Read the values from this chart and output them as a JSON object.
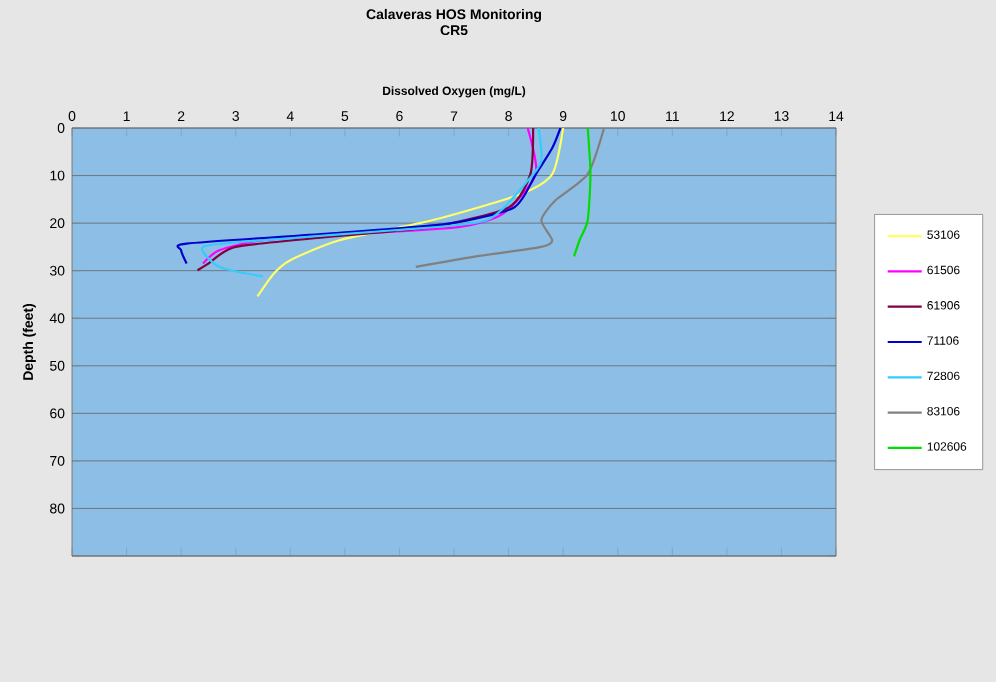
{
  "chart_data": {
    "type": "line",
    "title": "Calaveras HOS Monitoring",
    "subtitle": "CR5",
    "xlabel": "Dissolved Oxygen (mg/L)",
    "ylabel": "Depth (feet)",
    "xlim": [
      0,
      14
    ],
    "xticks": [
      0,
      1,
      2,
      3,
      4,
      5,
      6,
      7,
      8,
      9,
      10,
      11,
      12,
      13,
      14
    ],
    "ylim": [
      90,
      0
    ],
    "yticks": [
      0,
      10,
      20,
      30,
      40,
      50,
      60,
      70,
      80,
      {
        "value": 90,
        "label": null
      }
    ],
    "grid": "y",
    "legend": "right",
    "marker": "none",
    "line_style": "solid",
    "series": [
      {
        "name": "53106",
        "color": "#ffff66",
        "x": [
          9.0,
          8.8,
          8.2,
          6.6,
          4.9,
          4.0,
          3.7,
          3.4
        ],
        "values": [
          0,
          9.7,
          14,
          19.4,
          23.6,
          27.8,
          30.6,
          35.4
        ]
      },
      {
        "name": "61506",
        "color": "#ff00ff",
        "x": [
          8.35,
          8.5,
          7.9,
          7.1,
          5.3,
          3.5,
          2.7,
          2.4
        ],
        "values": [
          0,
          9.7,
          18,
          20.8,
          22.2,
          23.6,
          25.7,
          28.5
        ]
      },
      {
        "name": "61906",
        "color": "#800040",
        "x": [
          8.45,
          8.4,
          8.0,
          6.6,
          4.7,
          3.0,
          2.5,
          2.3
        ],
        "values": [
          0,
          9.7,
          16.7,
          20.8,
          22.9,
          25,
          28.5,
          29.9
        ]
      },
      {
        "name": "71106",
        "color": "#0000cc",
        "x": [
          8.95,
          8.8,
          8.5,
          8.1,
          6.9,
          4.7,
          2.1,
          2.0,
          2.1
        ],
        "values": [
          0,
          4.2,
          9.7,
          16.7,
          20.1,
          22.2,
          24.3,
          25.7,
          28.5
        ]
      },
      {
        "name": "72806",
        "color": "#33ccff",
        "x": [
          8.55,
          8.6,
          8.35,
          7.6,
          5.9,
          3.5,
          2.4,
          2.7,
          3.5
        ],
        "values": [
          0,
          6.9,
          11.1,
          19.4,
          21.5,
          23.6,
          25,
          29.2,
          31.2
        ]
      },
      {
        "name": "83106",
        "color": "#808080",
        "x": [
          9.75,
          9.45,
          8.85,
          8.6,
          8.8,
          8.6,
          7.4,
          6.3
        ],
        "values": [
          0,
          9.7,
          15.3,
          19.4,
          23.6,
          25,
          27,
          29.2
        ]
      },
      {
        "name": "102606",
        "color": "#00dd00",
        "x": [
          9.45,
          9.5,
          9.45,
          9.3,
          9.2
        ],
        "values": [
          0,
          9.7,
          19.4,
          23.6,
          27
        ]
      }
    ]
  }
}
